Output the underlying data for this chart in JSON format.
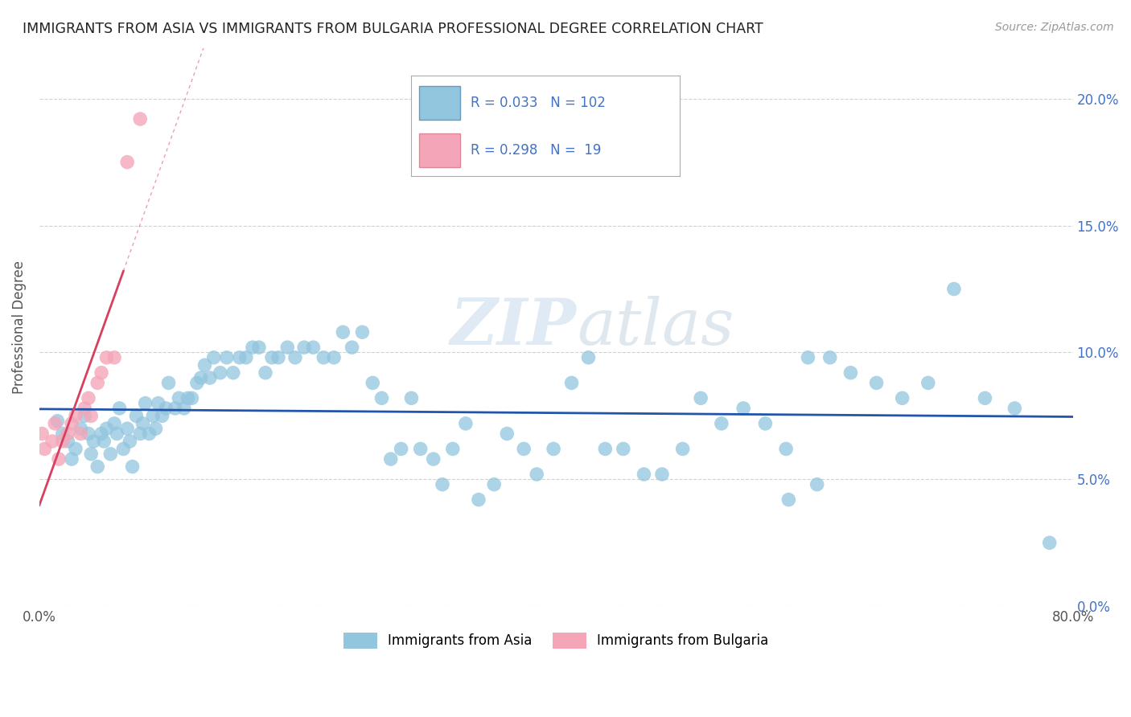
{
  "title": "IMMIGRANTS FROM ASIA VS IMMIGRANTS FROM BULGARIA PROFESSIONAL DEGREE CORRELATION CHART",
  "source": "Source: ZipAtlas.com",
  "ylabel": "Professional Degree",
  "xlim": [
    0.0,
    0.8
  ],
  "ylim": [
    0.0,
    0.22
  ],
  "xticks": [
    0.0,
    0.1,
    0.2,
    0.3,
    0.4,
    0.5,
    0.6,
    0.7,
    0.8
  ],
  "xticklabels": [
    "0.0%",
    "",
    "",
    "",
    "",
    "",
    "",
    "",
    "80.0%"
  ],
  "yticks": [
    0.0,
    0.05,
    0.1,
    0.15,
    0.2
  ],
  "yticklabels_right": [
    "0.0%",
    "5.0%",
    "10.0%",
    "15.0%",
    "20.0%"
  ],
  "asia_color": "#92C5DE",
  "bulgaria_color": "#F4A6B8",
  "trend_asia_color": "#2255AA",
  "trend_bulgaria_color": "#D94060",
  "R_asia": 0.033,
  "N_asia": 102,
  "R_bulgaria": 0.298,
  "N_bulgaria": 19,
  "asia_x": [
    0.014,
    0.018,
    0.022,
    0.025,
    0.028,
    0.032,
    0.035,
    0.038,
    0.04,
    0.042,
    0.045,
    0.048,
    0.05,
    0.052,
    0.055,
    0.058,
    0.06,
    0.062,
    0.065,
    0.068,
    0.07,
    0.072,
    0.075,
    0.078,
    0.08,
    0.082,
    0.085,
    0.088,
    0.09,
    0.092,
    0.095,
    0.098,
    0.1,
    0.105,
    0.108,
    0.112,
    0.115,
    0.118,
    0.122,
    0.125,
    0.128,
    0.132,
    0.135,
    0.14,
    0.145,
    0.15,
    0.155,
    0.16,
    0.165,
    0.17,
    0.175,
    0.18,
    0.185,
    0.192,
    0.198,
    0.205,
    0.212,
    0.22,
    0.228,
    0.235,
    0.242,
    0.25,
    0.258,
    0.265,
    0.272,
    0.28,
    0.288,
    0.295,
    0.305,
    0.312,
    0.32,
    0.33,
    0.34,
    0.352,
    0.362,
    0.375,
    0.385,
    0.398,
    0.412,
    0.425,
    0.438,
    0.452,
    0.468,
    0.482,
    0.498,
    0.512,
    0.528,
    0.545,
    0.562,
    0.578,
    0.595,
    0.612,
    0.628,
    0.648,
    0.668,
    0.688,
    0.708,
    0.732,
    0.755,
    0.782,
    0.58,
    0.602
  ],
  "asia_y": [
    0.073,
    0.068,
    0.065,
    0.058,
    0.062,
    0.07,
    0.075,
    0.068,
    0.06,
    0.065,
    0.055,
    0.068,
    0.065,
    0.07,
    0.06,
    0.072,
    0.068,
    0.078,
    0.062,
    0.07,
    0.065,
    0.055,
    0.075,
    0.068,
    0.072,
    0.08,
    0.068,
    0.075,
    0.07,
    0.08,
    0.075,
    0.078,
    0.088,
    0.078,
    0.082,
    0.078,
    0.082,
    0.082,
    0.088,
    0.09,
    0.095,
    0.09,
    0.098,
    0.092,
    0.098,
    0.092,
    0.098,
    0.098,
    0.102,
    0.102,
    0.092,
    0.098,
    0.098,
    0.102,
    0.098,
    0.102,
    0.102,
    0.098,
    0.098,
    0.108,
    0.102,
    0.108,
    0.088,
    0.082,
    0.058,
    0.062,
    0.082,
    0.062,
    0.058,
    0.048,
    0.062,
    0.072,
    0.042,
    0.048,
    0.068,
    0.062,
    0.052,
    0.062,
    0.088,
    0.098,
    0.062,
    0.062,
    0.052,
    0.052,
    0.062,
    0.082,
    0.072,
    0.078,
    0.072,
    0.062,
    0.098,
    0.098,
    0.092,
    0.088,
    0.082,
    0.088,
    0.125,
    0.082,
    0.078,
    0.025,
    0.042,
    0.048
  ],
  "bulgaria_x": [
    0.002,
    0.004,
    0.01,
    0.012,
    0.015,
    0.018,
    0.022,
    0.025,
    0.028,
    0.032,
    0.035,
    0.038,
    0.04,
    0.045,
    0.048,
    0.052,
    0.058,
    0.068,
    0.078
  ],
  "bulgaria_y": [
    0.068,
    0.062,
    0.065,
    0.072,
    0.058,
    0.065,
    0.068,
    0.072,
    0.075,
    0.068,
    0.078,
    0.082,
    0.075,
    0.088,
    0.092,
    0.098,
    0.098,
    0.175,
    0.192
  ]
}
